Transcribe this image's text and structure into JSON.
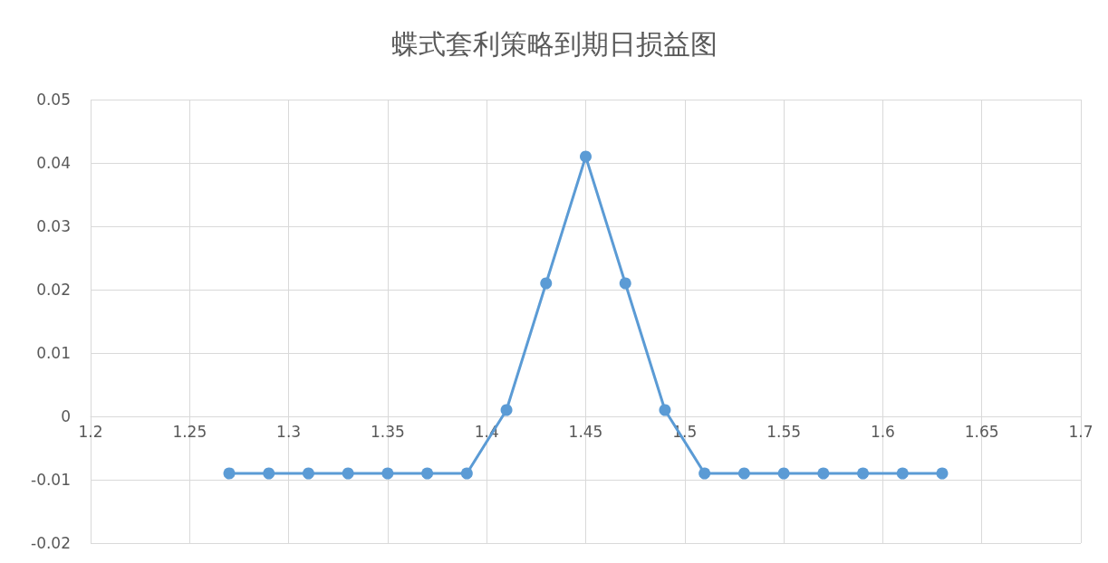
{
  "chart_data": {
    "type": "line",
    "title": "蝶式套利策略到期日损益图",
    "x": [
      1.27,
      1.29,
      1.31,
      1.33,
      1.35,
      1.37,
      1.39,
      1.41,
      1.43,
      1.45,
      1.47,
      1.49,
      1.51,
      1.53,
      1.55,
      1.57,
      1.59,
      1.61,
      1.63
    ],
    "series": [
      {
        "color": "#5b9bd5",
        "values": [
          -0.009,
          -0.009,
          -0.009,
          -0.009,
          -0.009,
          -0.009,
          -0.009,
          0.001,
          0.021,
          0.041,
          0.021,
          0.001,
          -0.009,
          -0.009,
          -0.009,
          -0.009,
          -0.009,
          -0.009,
          -0.009
        ]
      }
    ],
    "xlim": [
      1.2,
      1.7
    ],
    "xticks": [
      1.2,
      1.25,
      1.3,
      1.35,
      1.4,
      1.45,
      1.5,
      1.55,
      1.6,
      1.65,
      1.7
    ],
    "ylim": [
      -0.02,
      0.05
    ],
    "yticks": [
      -0.02,
      -0.01,
      0,
      0.01,
      0.02,
      0.03,
      0.04,
      0.05
    ],
    "grid": true,
    "marker": "circle",
    "line_style": "solid"
  }
}
